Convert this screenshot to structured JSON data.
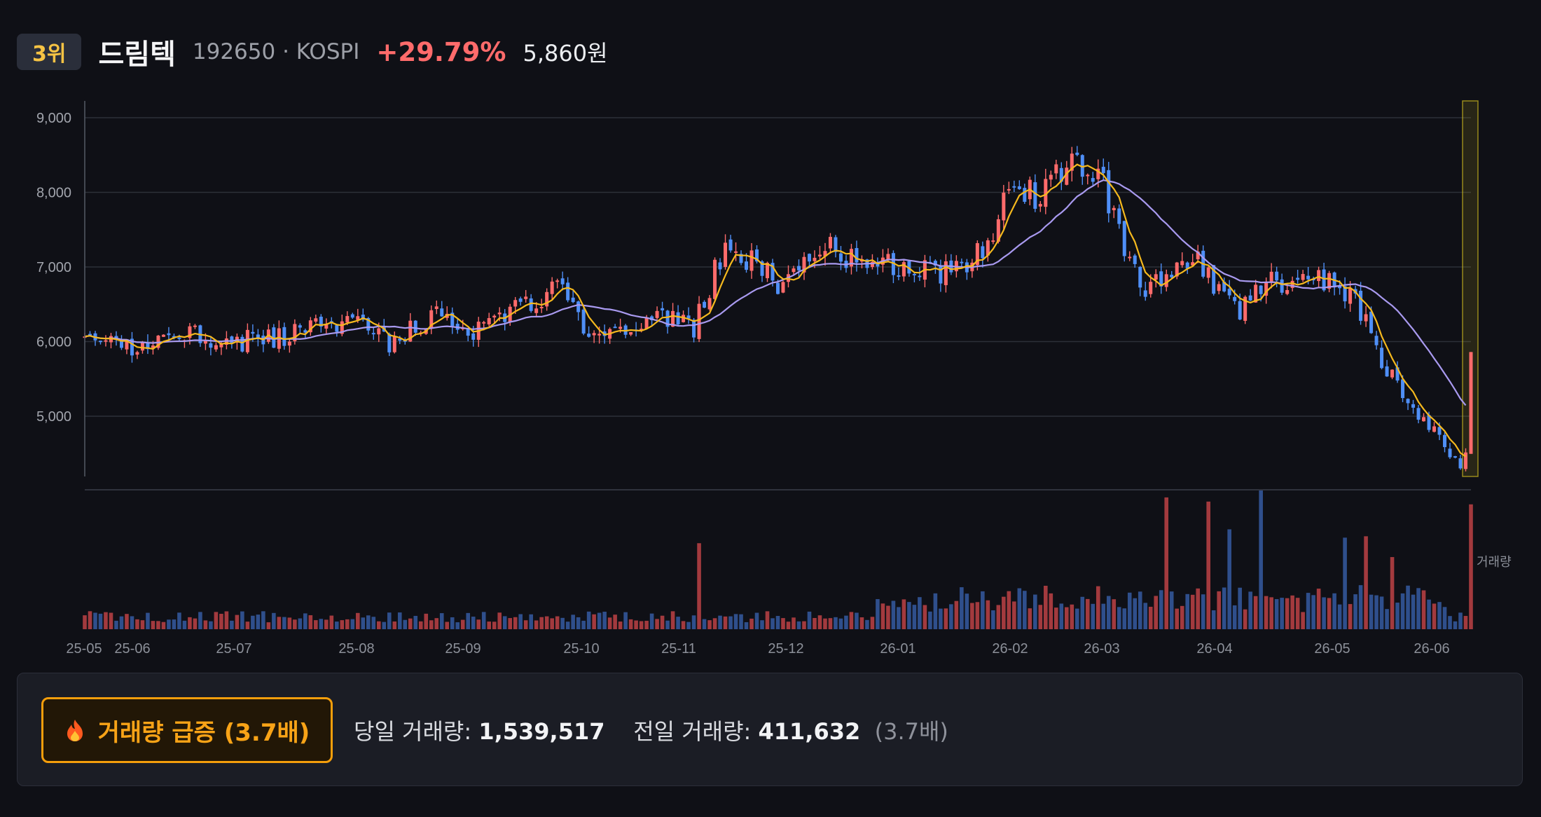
{
  "header": {
    "rank": "3위",
    "name": "드림텍",
    "code": "192650 · KOSPI",
    "change": "+29.79%",
    "price": "5,860원"
  },
  "colors": {
    "up": "#ff6b6b",
    "down": "#4f8ff7",
    "ma_short": "#f5b91e",
    "ma_long": "#a99af0",
    "highlight": "#d9c51e",
    "alert": "#f59e0b"
  },
  "chart_data": {
    "type": "candlestick",
    "y_ticks": [
      "9,000",
      "8,000",
      "7,000",
      "6,000",
      "5,000"
    ],
    "x_ticks": [
      "25-05",
      "25-06",
      "25-07",
      "25-08",
      "25-09",
      "25-10",
      "25-11",
      "25-12",
      "26-01",
      "26-02",
      "26-03",
      "26-04",
      "26-05",
      "26-06"
    ],
    "volume_label": "거래량",
    "price_range": [
      4300,
      9200
    ],
    "price_path": [
      [
        0,
        6000
      ],
      [
        10,
        5900
      ],
      [
        18,
        6200
      ],
      [
        26,
        5980
      ],
      [
        40,
        6100
      ],
      [
        50,
        6300
      ],
      [
        58,
        6000
      ],
      [
        68,
        6450
      ],
      [
        72,
        6050
      ],
      [
        80,
        6400
      ],
      [
        90,
        6700
      ],
      [
        96,
        6150
      ],
      [
        110,
        6300
      ],
      [
        116,
        6200
      ],
      [
        122,
        7300
      ],
      [
        128,
        7050
      ],
      [
        132,
        6800
      ],
      [
        140,
        7300
      ],
      [
        148,
        7050
      ],
      [
        158,
        6950
      ],
      [
        166,
        6950
      ],
      [
        172,
        7300
      ],
      [
        176,
        8200
      ],
      [
        182,
        7900
      ],
      [
        188,
        8500
      ],
      [
        194,
        8100
      ],
      [
        198,
        7200
      ],
      [
        202,
        6700
      ],
      [
        212,
        7050
      ],
      [
        220,
        6400
      ],
      [
        226,
        6800
      ],
      [
        236,
        6850
      ],
      [
        242,
        6600
      ],
      [
        248,
        5600
      ],
      [
        256,
        4900
      ],
      [
        262,
        4300
      ],
      [
        264,
        5860
      ]
    ],
    "volume_spikes": [
      [
        117,
        0.62
      ],
      [
        206,
        0.95
      ],
      [
        214,
        0.92
      ],
      [
        218,
        0.72
      ],
      [
        224,
        1.0
      ],
      [
        240,
        0.66
      ],
      [
        244,
        0.67
      ],
      [
        249,
        0.52
      ],
      [
        264,
        0.9
      ]
    ],
    "current_volume": "1,539,517",
    "previous_volume": "411,632"
  },
  "alert": {
    "label": "거래량 급증 (3.7배)",
    "today_label": "당일 거래량:",
    "today_value": "1,539,517",
    "prev_label": "전일 거래량:",
    "prev_value": "411,632",
    "ratio": "(3.7배)"
  }
}
